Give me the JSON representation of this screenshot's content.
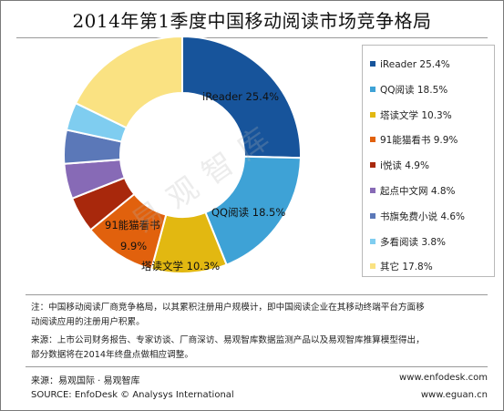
{
  "title": "2014年第1季度中国移动阅读市场竞争格局",
  "chart_data": {
    "type": "pie",
    "donut": true,
    "title": "2014年第1季度中国移动阅读市场竞争格局",
    "legend_position": "right",
    "slices": [
      {
        "label": "iReader",
        "value": 25.4,
        "value_label": "25.4%",
        "color": "#17549b",
        "callout": "iReader  25.4%",
        "callout_value": ""
      },
      {
        "label": "QQ阅读",
        "value": 18.5,
        "value_label": "18.5%",
        "color": "#3ea2d6",
        "callout": "QQ阅读  18.5%",
        "callout_value": ""
      },
      {
        "label": "塔读文学",
        "value": 10.3,
        "value_label": "10.3%",
        "color": "#e2b811",
        "callout": "塔读文学  10.3%",
        "callout_value": ""
      },
      {
        "label": "91能猫看书",
        "value": 9.9,
        "value_label": "9.9%",
        "color": "#e1610d",
        "callout": "91能猫看书",
        "callout_value": "9.9%"
      },
      {
        "label": "i悦读",
        "value": 4.9,
        "value_label": "4.9%",
        "color": "#a8280c",
        "callout": "",
        "callout_value": ""
      },
      {
        "label": "起点中文网",
        "value": 4.8,
        "value_label": "4.8%",
        "color": "#876ab6",
        "callout": "",
        "callout_value": ""
      },
      {
        "label": "书旗免费小说",
        "value": 4.6,
        "value_label": "4.6%",
        "color": "#5b78b8",
        "callout": "",
        "callout_value": ""
      },
      {
        "label": "多看阅读",
        "value": 3.8,
        "value_label": "3.8%",
        "color": "#7fcdf0",
        "callout": "",
        "callout_value": ""
      },
      {
        "label": "其它",
        "value": 17.8,
        "value_label": "17.8%",
        "color": "#fae282",
        "callout": "",
        "callout_value": ""
      }
    ]
  },
  "watermark": "易观智库",
  "notes": [
    "注：中国移动阅读厂商竞争格局，以其累积注册用户规模计，即中国阅读企业在其移动终端平台方面移",
    "动阅读应用的注册用户积累。",
    "来源：上市公司财务报告、专家访谈、厂商深访、易观智库数据监测产品以及易观智库推算模型得出，",
    "部分数据将在2014年终盘点做相应调整。"
  ],
  "footer": {
    "source_cn": "来源：易观国际 · 易观智库",
    "source_en": "SOURCE: EnfoDesk © Analysys International",
    "url1": "www.enfodesk.com",
    "url2": "www.eguan.cn"
  }
}
